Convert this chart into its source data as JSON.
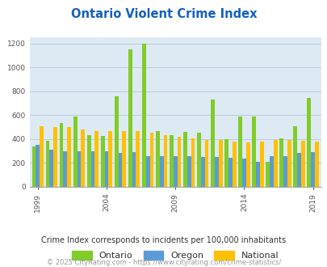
{
  "title": "Ontario Violent Crime Index",
  "subtitle": "Crime Index corresponds to incidents per 100,000 inhabitants",
  "footer": "© 2025 CityRating.com - https://www.cityrating.com/crime-statistics/",
  "years": [
    1999,
    2000,
    2001,
    2002,
    2003,
    2004,
    2005,
    2006,
    2007,
    2008,
    2009,
    2010,
    2011,
    2012,
    2013,
    2014,
    2015,
    2016,
    2017,
    2018,
    2019,
    2020
  ],
  "ontario": [
    335,
    385,
    535,
    590,
    430,
    425,
    755,
    1150,
    1195,
    465,
    430,
    460,
    455,
    730,
    400,
    590,
    590,
    210,
    405,
    510,
    745,
    null
  ],
  "oregon": [
    350,
    310,
    300,
    295,
    300,
    300,
    285,
    290,
    260,
    255,
    255,
    255,
    250,
    250,
    245,
    235,
    210,
    260,
    260,
    285,
    290,
    null
  ],
  "national": [
    510,
    500,
    500,
    480,
    465,
    465,
    470,
    465,
    455,
    430,
    420,
    405,
    395,
    395,
    380,
    370,
    380,
    390,
    395,
    385,
    380,
    null
  ],
  "ontario_color": "#80cc28",
  "oregon_color": "#5b9bd5",
  "national_color": "#ffc000",
  "plot_bg": "#ddeaf4",
  "title_color": "#1560bd",
  "subtitle_color": "#333333",
  "footer_color": "#999999",
  "ylim": [
    0,
    1250
  ],
  "yticks": [
    0,
    200,
    400,
    600,
    800,
    1000,
    1200
  ],
  "xtick_years": [
    1999,
    2004,
    2009,
    2014,
    2019
  ],
  "bar_width": 0.28
}
